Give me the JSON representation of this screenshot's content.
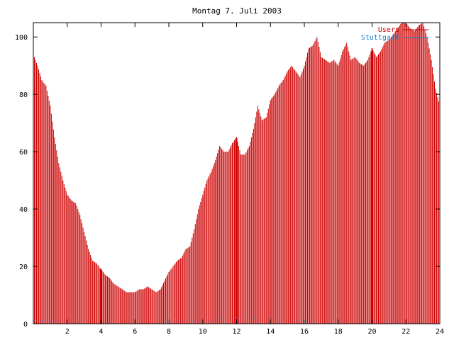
{
  "chart_data": {
    "type": "bar",
    "title": "Montag 7. Juli 2003",
    "xlabel": "",
    "ylabel": "",
    "xlim": [
      0,
      24
    ],
    "ylim": [
      0,
      105
    ],
    "x_ticks": [
      2,
      4,
      6,
      8,
      10,
      12,
      14,
      16,
      18,
      20,
      22,
      24
    ],
    "y_ticks": [
      0,
      20,
      40,
      60,
      80,
      100
    ],
    "grid": false,
    "legend_position": "top-right",
    "series": [
      {
        "name": "Users",
        "color": "#cc0000",
        "style": "impulses",
        "points": [
          [
            0.0,
            94
          ],
          [
            0.25,
            90
          ],
          [
            0.5,
            85
          ],
          [
            0.75,
            83
          ],
          [
            1.0,
            76
          ],
          [
            1.25,
            65
          ],
          [
            1.5,
            56
          ],
          [
            1.75,
            50
          ],
          [
            2.0,
            45
          ],
          [
            2.25,
            43
          ],
          [
            2.5,
            42
          ],
          [
            2.75,
            38
          ],
          [
            3.0,
            32
          ],
          [
            3.25,
            26
          ],
          [
            3.5,
            22
          ],
          [
            3.75,
            21
          ],
          [
            4.0,
            19
          ],
          [
            4.25,
            17
          ],
          [
            4.5,
            16
          ],
          [
            4.75,
            14
          ],
          [
            5.0,
            13
          ],
          [
            5.25,
            12
          ],
          [
            5.5,
            11
          ],
          [
            5.75,
            11
          ],
          [
            6.0,
            11
          ],
          [
            6.25,
            12
          ],
          [
            6.5,
            12
          ],
          [
            6.75,
            13
          ],
          [
            7.0,
            12
          ],
          [
            7.25,
            11
          ],
          [
            7.5,
            12
          ],
          [
            7.75,
            15
          ],
          [
            8.0,
            18
          ],
          [
            8.25,
            20
          ],
          [
            8.5,
            22
          ],
          [
            8.75,
            23
          ],
          [
            9.0,
            26
          ],
          [
            9.25,
            27
          ],
          [
            9.5,
            33
          ],
          [
            9.75,
            40
          ],
          [
            10.0,
            45
          ],
          [
            10.25,
            50
          ],
          [
            10.5,
            53
          ],
          [
            10.75,
            57
          ],
          [
            11.0,
            62
          ],
          [
            11.25,
            60
          ],
          [
            11.5,
            60
          ],
          [
            11.75,
            63
          ],
          [
            12.0,
            65
          ],
          [
            12.25,
            59
          ],
          [
            12.5,
            59
          ],
          [
            12.75,
            62
          ],
          [
            13.0,
            68
          ],
          [
            13.25,
            76
          ],
          [
            13.5,
            71
          ],
          [
            13.75,
            72
          ],
          [
            14.0,
            78
          ],
          [
            14.25,
            80
          ],
          [
            14.5,
            83
          ],
          [
            14.75,
            85
          ],
          [
            15.0,
            88
          ],
          [
            15.25,
            90
          ],
          [
            15.5,
            88
          ],
          [
            15.75,
            86
          ],
          [
            16.0,
            90
          ],
          [
            16.25,
            96
          ],
          [
            16.5,
            97
          ],
          [
            16.75,
            100
          ],
          [
            17.0,
            93
          ],
          [
            17.25,
            92
          ],
          [
            17.5,
            91
          ],
          [
            17.75,
            92
          ],
          [
            18.0,
            90
          ],
          [
            18.25,
            95
          ],
          [
            18.5,
            98
          ],
          [
            18.75,
            92
          ],
          [
            19.0,
            93
          ],
          [
            19.25,
            91
          ],
          [
            19.5,
            90
          ],
          [
            19.75,
            92
          ],
          [
            20.0,
            96
          ],
          [
            20.25,
            93
          ],
          [
            20.5,
            95
          ],
          [
            20.75,
            98
          ],
          [
            21.0,
            99
          ],
          [
            21.25,
            101
          ],
          [
            21.5,
            103
          ],
          [
            21.75,
            105
          ],
          [
            22.0,
            105
          ],
          [
            22.25,
            103
          ],
          [
            22.5,
            102
          ],
          [
            22.75,
            104
          ],
          [
            23.0,
            105
          ],
          [
            23.25,
            100
          ],
          [
            23.5,
            92
          ],
          [
            23.75,
            82
          ],
          [
            24.0,
            76
          ]
        ],
        "emphasized_points": [
          [
            4.0,
            19
          ],
          [
            12.0,
            65
          ],
          [
            20.0,
            96
          ]
        ]
      },
      {
        "name": "Stuttgart",
        "color": "#1a7fd0",
        "style": "impulses",
        "points": [
          [
            0.0,
            1
          ],
          [
            0.5,
            1
          ],
          [
            1.0,
            1
          ],
          [
            1.5,
            1
          ],
          [
            7.75,
            1
          ],
          [
            8.5,
            1
          ],
          [
            9.5,
            1
          ],
          [
            10.5,
            1
          ],
          [
            11.0,
            2
          ],
          [
            12.0,
            2
          ],
          [
            13.0,
            2
          ],
          [
            14.0,
            2
          ],
          [
            14.5,
            1
          ],
          [
            15.5,
            1
          ],
          [
            16.5,
            1
          ],
          [
            18.5,
            1
          ],
          [
            20.25,
            1
          ],
          [
            20.75,
            1
          ]
        ]
      }
    ]
  }
}
